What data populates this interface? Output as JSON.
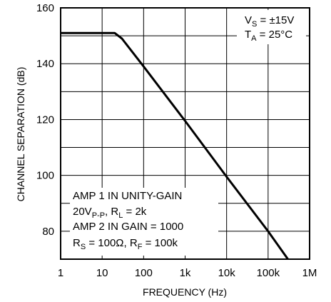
{
  "chart_data": {
    "type": "line",
    "xlabel": "FREQUENCY (Hz)",
    "ylabel": "CHANNEL SEPARATION (dB)",
    "x_scale": "log",
    "xlim": [
      1,
      1000000
    ],
    "ylim": [
      70,
      160
    ],
    "x_ticks": [
      {
        "value": 1,
        "label": "1"
      },
      {
        "value": 10,
        "label": "10"
      },
      {
        "value": 100,
        "label": "100"
      },
      {
        "value": 1000,
        "label": "1k"
      },
      {
        "value": 10000,
        "label": "10k"
      },
      {
        "value": 100000,
        "label": "100k"
      },
      {
        "value": 1000000,
        "label": "1M"
      }
    ],
    "y_ticks": [
      {
        "value": 80,
        "label": "80"
      },
      {
        "value": 100,
        "label": "100"
      },
      {
        "value": 120,
        "label": "120"
      },
      {
        "value": 140,
        "label": "140"
      },
      {
        "value": 160,
        "label": "160"
      }
    ],
    "grid": true,
    "series": [
      {
        "x": [
          1,
          10,
          20,
          30,
          100,
          1000,
          10000,
          100000,
          300000
        ],
        "values": [
          151,
          151,
          151,
          149,
          139,
          119.5,
          99.5,
          80,
          70
        ]
      }
    ],
    "conditions": {
      "vs_label": "V",
      "vs_sub": "S",
      "vs_value": " = ±15V",
      "ta_label": "T",
      "ta_sub": "A",
      "ta_value": " = 25°C"
    },
    "notes": {
      "line1": "AMP 1 IN UNITY-GAIN",
      "line2_a": "20V",
      "line2_sub": "P-P",
      "line2_b": ", R",
      "line2_sub2": "L",
      "line2_c": " = 2k",
      "line3": "AMP 2 IN GAIN = 1000",
      "line4_a": "R",
      "line4_sub": "S",
      "line4_b": " = 100Ω, R",
      "line4_sub2": "F",
      "line4_c": " = 100k"
    }
  }
}
